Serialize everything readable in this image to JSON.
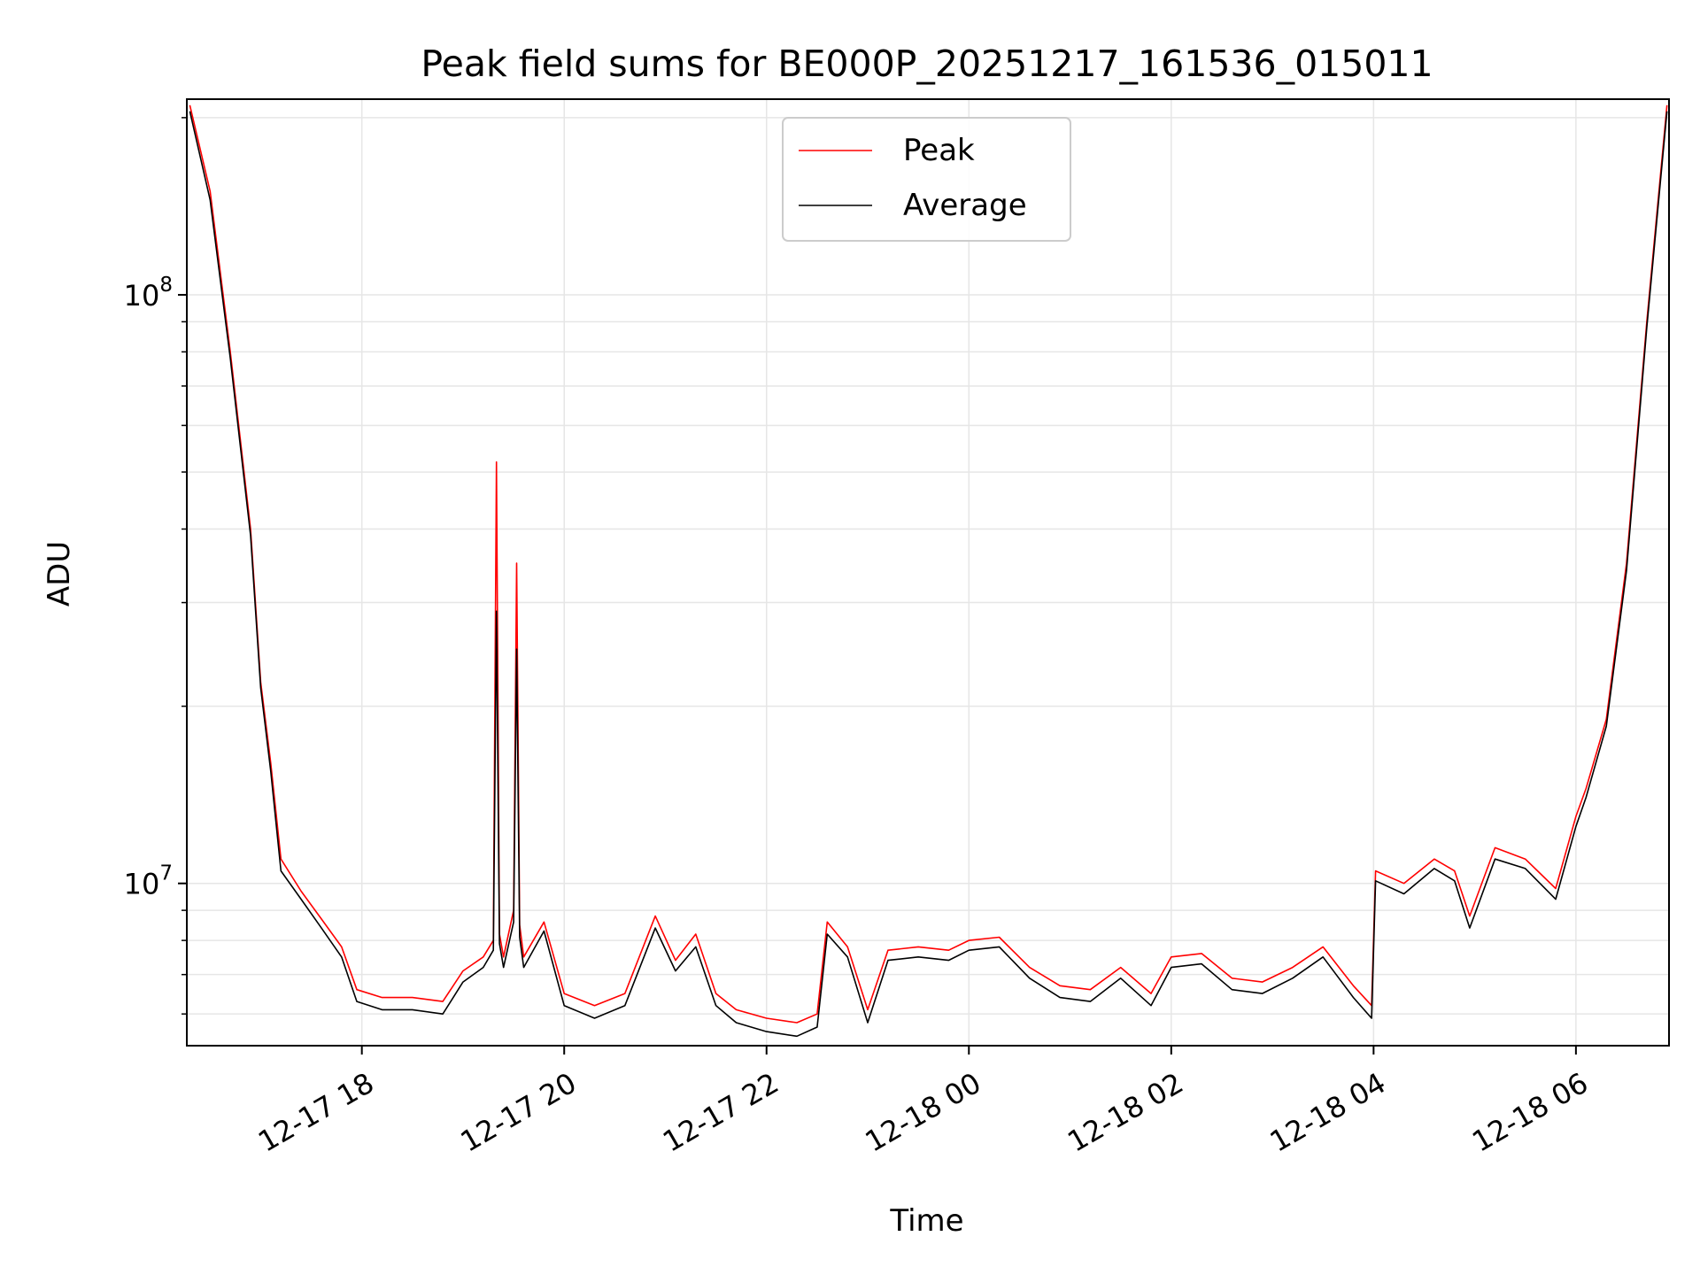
{
  "chart_data": {
    "type": "line",
    "title": "Peak field sums for BE000P_20251217_161536_015011",
    "xlabel": "Time",
    "ylabel": "ADU",
    "yscale": "log",
    "ylim": [
      5300000,
      215000000
    ],
    "xlim_hours_from_12_17_00": [
      16.27,
      30.92
    ],
    "grid": true,
    "legend_position": "upper center",
    "x_ticks": [
      {
        "hour": 18,
        "label": "12-17 18"
      },
      {
        "hour": 20,
        "label": "12-17 20"
      },
      {
        "hour": 22,
        "label": "12-17 22"
      },
      {
        "hour": 24,
        "label": "12-18 00"
      },
      {
        "hour": 26,
        "label": "12-18 02"
      },
      {
        "hour": 28,
        "label": "12-18 04"
      },
      {
        "hour": 30,
        "label": "12-18 06"
      }
    ],
    "y_ticks": [
      {
        "value": 10000000,
        "base": "10",
        "exp": "7"
      },
      {
        "value": 100000000,
        "base": "10",
        "exp": "8"
      }
    ],
    "series": [
      {
        "name": "Peak",
        "color": "#ff0000",
        "x": [
          16.3,
          16.5,
          16.7,
          16.9,
          17.0,
          17.1,
          17.2,
          17.4,
          17.6,
          17.8,
          17.95,
          18.2,
          18.5,
          18.8,
          19.0,
          19.2,
          19.3,
          19.33,
          19.36,
          19.4,
          19.5,
          19.53,
          19.56,
          19.6,
          19.8,
          20.0,
          20.3,
          20.6,
          20.9,
          21.1,
          21.3,
          21.5,
          21.7,
          22.0,
          22.3,
          22.5,
          22.6,
          22.8,
          23.0,
          23.2,
          23.5,
          23.8,
          24.0,
          24.3,
          24.6,
          24.9,
          25.2,
          25.5,
          25.8,
          26.0,
          26.3,
          26.6,
          26.9,
          27.2,
          27.5,
          27.8,
          27.98,
          28.02,
          28.3,
          28.6,
          28.8,
          28.95,
          29.2,
          29.5,
          29.8,
          30.0,
          30.1,
          30.3,
          30.5,
          30.7,
          30.9
        ],
        "values": [
          210000000,
          150000000,
          80000000,
          40000000,
          22000000,
          16000000,
          11000000,
          9700000,
          8700000,
          7800000,
          6600000,
          6400000,
          6400000,
          6300000,
          7100000,
          7500000,
          8000000,
          52000000,
          8200000,
          7500000,
          9000000,
          35000000,
          8500000,
          7500000,
          8600000,
          6500000,
          6200000,
          6500000,
          8800000,
          7400000,
          8200000,
          6500000,
          6100000,
          5900000,
          5800000,
          6000000,
          8600000,
          7800000,
          6100000,
          7700000,
          7800000,
          7700000,
          8000000,
          8100000,
          7200000,
          6700000,
          6600000,
          7200000,
          6500000,
          7500000,
          7600000,
          6900000,
          6800000,
          7200000,
          7800000,
          6700000,
          6200000,
          10500000,
          10000000,
          11000000,
          10500000,
          8800000,
          11500000,
          11000000,
          9800000,
          13000000,
          14500000,
          19000000,
          35000000,
          90000000,
          210000000
        ]
      },
      {
        "name": "Average",
        "color": "#000000",
        "x": [
          16.3,
          16.5,
          16.7,
          16.9,
          17.0,
          17.1,
          17.2,
          17.4,
          17.6,
          17.8,
          17.95,
          18.2,
          18.5,
          18.8,
          19.0,
          19.2,
          19.3,
          19.33,
          19.36,
          19.4,
          19.5,
          19.53,
          19.56,
          19.6,
          19.8,
          20.0,
          20.3,
          20.6,
          20.9,
          21.1,
          21.3,
          21.5,
          21.7,
          22.0,
          22.3,
          22.5,
          22.6,
          22.8,
          23.0,
          23.2,
          23.5,
          23.8,
          24.0,
          24.3,
          24.6,
          24.9,
          25.2,
          25.5,
          25.8,
          26.0,
          26.3,
          26.6,
          26.9,
          27.2,
          27.5,
          27.8,
          27.98,
          28.02,
          28.3,
          28.6,
          28.8,
          28.95,
          29.2,
          29.5,
          29.8,
          30.0,
          30.1,
          30.3,
          30.5,
          30.7,
          30.9
        ],
        "values": [
          205000000,
          145000000,
          78000000,
          39000000,
          21500000,
          15500000,
          10500000,
          9400000,
          8400000,
          7500000,
          6300000,
          6100000,
          6100000,
          6000000,
          6800000,
          7200000,
          7700000,
          29000000,
          7900000,
          7200000,
          8600000,
          25000000,
          8100000,
          7200000,
          8300000,
          6200000,
          5900000,
          6200000,
          8400000,
          7100000,
          7800000,
          6200000,
          5800000,
          5600000,
          5500000,
          5700000,
          8200000,
          7500000,
          5800000,
          7400000,
          7500000,
          7400000,
          7700000,
          7800000,
          6900000,
          6400000,
          6300000,
          6900000,
          6200000,
          7200000,
          7300000,
          6600000,
          6500000,
          6900000,
          7500000,
          6400000,
          5900000,
          10100000,
          9600000,
          10600000,
          10100000,
          8400000,
          11000000,
          10600000,
          9400000,
          12500000,
          14000000,
          18500000,
          34000000,
          88000000,
          205000000
        ]
      }
    ]
  }
}
